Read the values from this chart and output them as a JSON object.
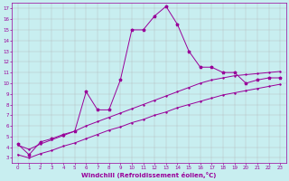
{
  "xlabel": "Windchill (Refroidissement éolien,°C)",
  "bg_color": "#c8eef0",
  "line_color": "#990099",
  "grid_color": "#b0b0b0",
  "xlim": [
    -0.5,
    23.5
  ],
  "ylim": [
    2.5,
    17.5
  ],
  "xticks": [
    0,
    1,
    2,
    3,
    4,
    5,
    6,
    7,
    8,
    9,
    10,
    11,
    12,
    13,
    14,
    15,
    16,
    17,
    18,
    19,
    20,
    21,
    22,
    23
  ],
  "yticks": [
    3,
    4,
    5,
    6,
    7,
    8,
    9,
    10,
    11,
    12,
    13,
    14,
    15,
    16,
    17
  ],
  "series1_x": [
    0,
    1,
    2,
    3,
    4,
    5,
    6,
    7,
    8,
    9,
    10,
    11,
    12,
    13,
    14,
    15,
    16,
    17,
    18,
    19,
    20,
    21,
    22,
    23
  ],
  "series1_y": [
    4.3,
    3.3,
    4.5,
    4.8,
    5.2,
    5.5,
    9.2,
    7.5,
    7.5,
    10.3,
    15.0,
    15.0,
    16.3,
    17.2,
    15.5,
    13.0,
    11.5,
    11.5,
    11.0,
    11.0,
    10.0,
    10.3,
    10.5,
    10.5
  ],
  "series2_x": [
    0,
    1,
    2,
    3,
    4,
    5,
    6,
    7,
    8,
    9,
    10,
    11,
    12,
    13,
    14,
    15,
    16,
    17,
    18,
    19,
    20,
    21,
    22,
    23
  ],
  "series2_y": [
    4.2,
    3.8,
    4.3,
    4.7,
    5.1,
    5.5,
    6.0,
    6.4,
    6.8,
    7.2,
    7.6,
    8.0,
    8.4,
    8.8,
    9.2,
    9.6,
    10.0,
    10.3,
    10.5,
    10.7,
    10.8,
    10.9,
    11.0,
    11.1
  ],
  "series3_x": [
    0,
    1,
    2,
    3,
    4,
    5,
    6,
    7,
    8,
    9,
    10,
    11,
    12,
    13,
    14,
    15,
    16,
    17,
    18,
    19,
    20,
    21,
    22,
    23
  ],
  "series3_y": [
    3.3,
    3.0,
    3.4,
    3.7,
    4.1,
    4.4,
    4.8,
    5.2,
    5.6,
    5.9,
    6.3,
    6.6,
    7.0,
    7.3,
    7.7,
    8.0,
    8.3,
    8.6,
    8.9,
    9.1,
    9.3,
    9.5,
    9.7,
    9.9
  ]
}
